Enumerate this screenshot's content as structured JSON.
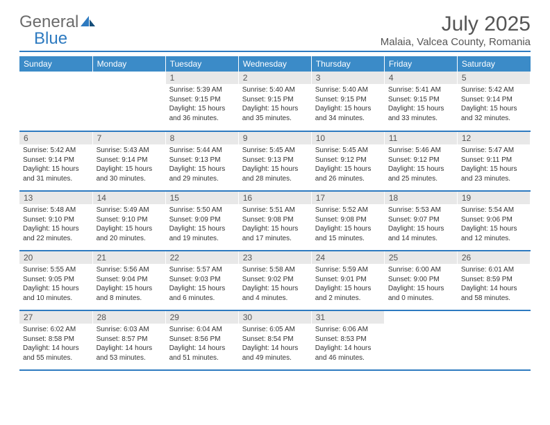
{
  "logo": {
    "word1": "General",
    "word2": "Blue"
  },
  "title": "July 2025",
  "location": "Malaia, Valcea County, Romania",
  "colors": {
    "header_bg": "#3b8bc8",
    "accent_border": "#2d7ac0",
    "daynum_bg": "#e8e8e8",
    "text_muted": "#555"
  },
  "weekdays": [
    "Sunday",
    "Monday",
    "Tuesday",
    "Wednesday",
    "Thursday",
    "Friday",
    "Saturday"
  ],
  "weeks": [
    [
      null,
      null,
      {
        "n": "1",
        "sr": "5:39 AM",
        "ss": "9:15 PM",
        "dl": "15 hours and 36 minutes."
      },
      {
        "n": "2",
        "sr": "5:40 AM",
        "ss": "9:15 PM",
        "dl": "15 hours and 35 minutes."
      },
      {
        "n": "3",
        "sr": "5:40 AM",
        "ss": "9:15 PM",
        "dl": "15 hours and 34 minutes."
      },
      {
        "n": "4",
        "sr": "5:41 AM",
        "ss": "9:15 PM",
        "dl": "15 hours and 33 minutes."
      },
      {
        "n": "5",
        "sr": "5:42 AM",
        "ss": "9:14 PM",
        "dl": "15 hours and 32 minutes."
      }
    ],
    [
      {
        "n": "6",
        "sr": "5:42 AM",
        "ss": "9:14 PM",
        "dl": "15 hours and 31 minutes."
      },
      {
        "n": "7",
        "sr": "5:43 AM",
        "ss": "9:14 PM",
        "dl": "15 hours and 30 minutes."
      },
      {
        "n": "8",
        "sr": "5:44 AM",
        "ss": "9:13 PM",
        "dl": "15 hours and 29 minutes."
      },
      {
        "n": "9",
        "sr": "5:45 AM",
        "ss": "9:13 PM",
        "dl": "15 hours and 28 minutes."
      },
      {
        "n": "10",
        "sr": "5:45 AM",
        "ss": "9:12 PM",
        "dl": "15 hours and 26 minutes."
      },
      {
        "n": "11",
        "sr": "5:46 AM",
        "ss": "9:12 PM",
        "dl": "15 hours and 25 minutes."
      },
      {
        "n": "12",
        "sr": "5:47 AM",
        "ss": "9:11 PM",
        "dl": "15 hours and 23 minutes."
      }
    ],
    [
      {
        "n": "13",
        "sr": "5:48 AM",
        "ss": "9:10 PM",
        "dl": "15 hours and 22 minutes."
      },
      {
        "n": "14",
        "sr": "5:49 AM",
        "ss": "9:10 PM",
        "dl": "15 hours and 20 minutes."
      },
      {
        "n": "15",
        "sr": "5:50 AM",
        "ss": "9:09 PM",
        "dl": "15 hours and 19 minutes."
      },
      {
        "n": "16",
        "sr": "5:51 AM",
        "ss": "9:08 PM",
        "dl": "15 hours and 17 minutes."
      },
      {
        "n": "17",
        "sr": "5:52 AM",
        "ss": "9:08 PM",
        "dl": "15 hours and 15 minutes."
      },
      {
        "n": "18",
        "sr": "5:53 AM",
        "ss": "9:07 PM",
        "dl": "15 hours and 14 minutes."
      },
      {
        "n": "19",
        "sr": "5:54 AM",
        "ss": "9:06 PM",
        "dl": "15 hours and 12 minutes."
      }
    ],
    [
      {
        "n": "20",
        "sr": "5:55 AM",
        "ss": "9:05 PM",
        "dl": "15 hours and 10 minutes."
      },
      {
        "n": "21",
        "sr": "5:56 AM",
        "ss": "9:04 PM",
        "dl": "15 hours and 8 minutes."
      },
      {
        "n": "22",
        "sr": "5:57 AM",
        "ss": "9:03 PM",
        "dl": "15 hours and 6 minutes."
      },
      {
        "n": "23",
        "sr": "5:58 AM",
        "ss": "9:02 PM",
        "dl": "15 hours and 4 minutes."
      },
      {
        "n": "24",
        "sr": "5:59 AM",
        "ss": "9:01 PM",
        "dl": "15 hours and 2 minutes."
      },
      {
        "n": "25",
        "sr": "6:00 AM",
        "ss": "9:00 PM",
        "dl": "15 hours and 0 minutes."
      },
      {
        "n": "26",
        "sr": "6:01 AM",
        "ss": "8:59 PM",
        "dl": "14 hours and 58 minutes."
      }
    ],
    [
      {
        "n": "27",
        "sr": "6:02 AM",
        "ss": "8:58 PM",
        "dl": "14 hours and 55 minutes."
      },
      {
        "n": "28",
        "sr": "6:03 AM",
        "ss": "8:57 PM",
        "dl": "14 hours and 53 minutes."
      },
      {
        "n": "29",
        "sr": "6:04 AM",
        "ss": "8:56 PM",
        "dl": "14 hours and 51 minutes."
      },
      {
        "n": "30",
        "sr": "6:05 AM",
        "ss": "8:54 PM",
        "dl": "14 hours and 49 minutes."
      },
      {
        "n": "31",
        "sr": "6:06 AM",
        "ss": "8:53 PM",
        "dl": "14 hours and 46 minutes."
      },
      null,
      null
    ]
  ],
  "labels": {
    "sunrise": "Sunrise:",
    "sunset": "Sunset:",
    "daylight": "Daylight:"
  }
}
